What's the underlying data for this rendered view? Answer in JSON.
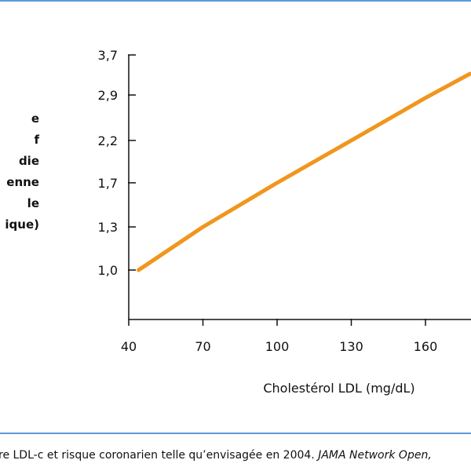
{
  "colors": {
    "rule": "#5b9bd5",
    "line": "#f0961e",
    "axis": "#111111"
  },
  "ylabel_lines": [
    "e",
    "f",
    "die",
    "enne",
    "le",
    "ique)"
  ],
  "chart_data": {
    "type": "line",
    "xlabel": "Cholestérol LDL (mg/dL)",
    "x_ticks": [
      40,
      70,
      100,
      130,
      160
    ],
    "x_tick_labels": [
      "40",
      "70",
      "100",
      "130",
      "160"
    ],
    "xlim": [
      40,
      178
    ],
    "y_scale": "log",
    "y_ticks": [
      1.0,
      1.3,
      1.7,
      2.2,
      2.9,
      3.7
    ],
    "y_tick_labels": [
      "1,0",
      "1,3",
      "1,7",
      "2,2",
      "2,9",
      "3,7"
    ],
    "ylim": [
      0.72,
      3.7
    ],
    "grid": false,
    "series": [
      {
        "x": [
          44,
          70,
          100,
          130,
          160,
          178
        ],
        "y": [
          1.0,
          1.3,
          1.7,
          2.2,
          2.85,
          3.3
        ]
      }
    ]
  },
  "caption": {
    "text": "re LDL-c et risque coronarien telle qu’envisagée en 2004. ",
    "source_italic": "JAMA Network Open,"
  }
}
